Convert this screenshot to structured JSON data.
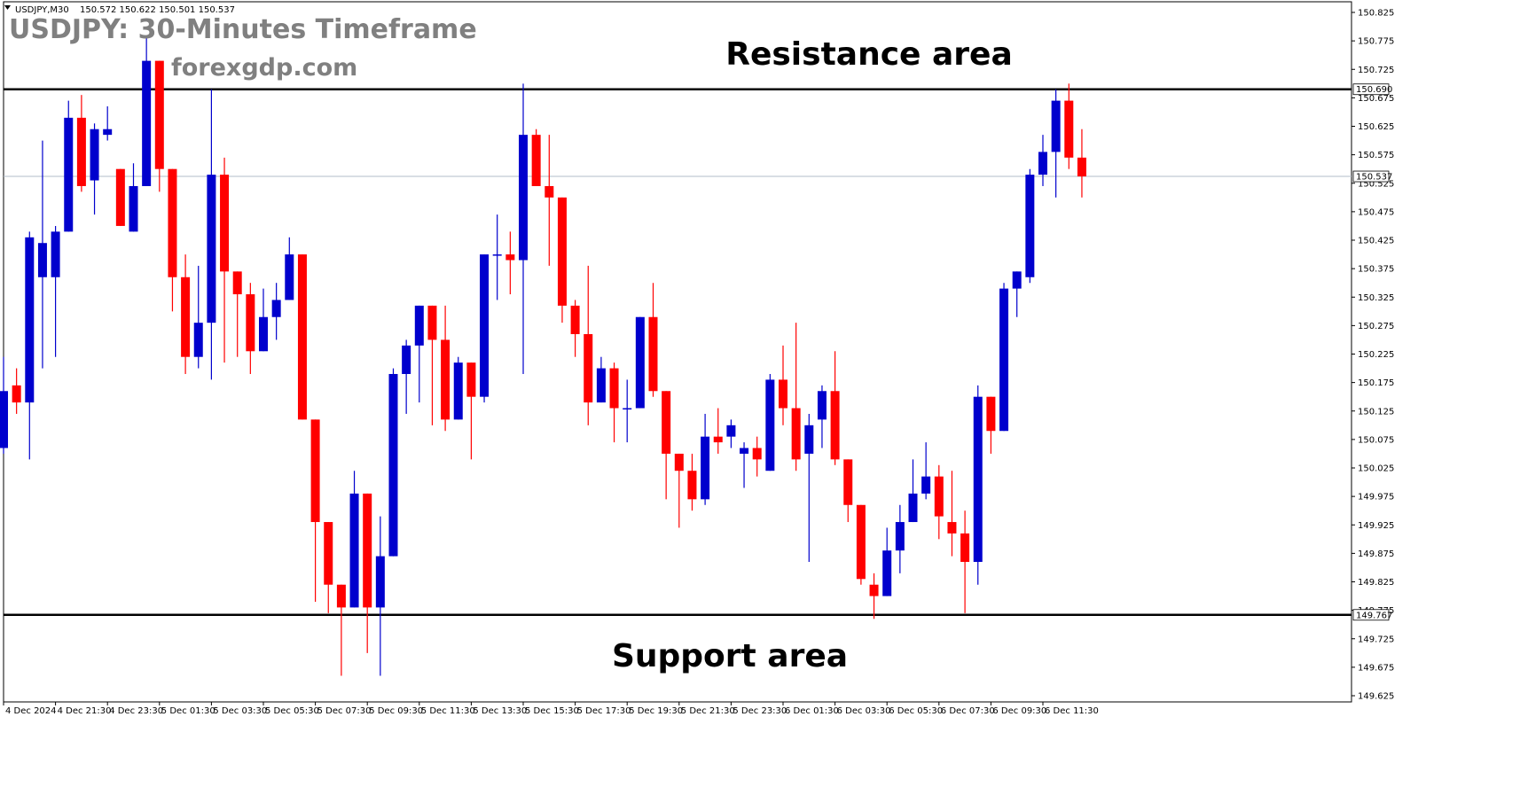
{
  "window": {
    "symbol_info": "USDJPY,M30",
    "ohlc_info": "150.572 150.622 150.501 150.537"
  },
  "overlay": {
    "title": "USDJPY: 30-Minutes Timeframe",
    "website": "forexgdp.com",
    "resistance_label": "Resistance area",
    "support_label": "Support area"
  },
  "colors": {
    "bull": "#0000cd",
    "bear": "#ff0000",
    "bg": "#ffffff",
    "line": "#000000",
    "bid_line": "#b0bcc8"
  },
  "chart_data": {
    "type": "candlestick",
    "timeframe": "M30",
    "y_range": [
      149.6,
      150.84
    ],
    "y_ticks": [
      "150.825",
      "150.775",
      "150.725",
      "150.675",
      "150.625",
      "150.575",
      "150.525",
      "150.475",
      "150.425",
      "150.375",
      "150.325",
      "150.275",
      "150.225",
      "150.175",
      "150.125",
      "150.075",
      "150.025",
      "149.975",
      "149.925",
      "149.875",
      "149.825",
      "149.775",
      "149.725",
      "149.675",
      "149.625"
    ],
    "x_labels": [
      "4 Dec 2024",
      "4 Dec 21:30",
      "4 Dec 23:30",
      "5 Dec 01:30",
      "5 Dec 03:30",
      "5 Dec 05:30",
      "5 Dec 07:30",
      "5 Dec 09:30",
      "5 Dec 11:30",
      "5 Dec 13:30",
      "5 Dec 15:30",
      "5 Dec 17:30",
      "5 Dec 19:30",
      "5 Dec 21:30",
      "5 Dec 23:30",
      "6 Dec 01:30",
      "6 Dec 03:30",
      "6 Dec 05:30",
      "6 Dec 07:30",
      "6 Dec 09:30",
      "6 Dec 11:30"
    ],
    "levels": {
      "resistance": 150.69,
      "support": 149.767,
      "current": 150.537
    },
    "level_labels": {
      "resistance": "150.690",
      "support": "149.767",
      "current": "150.537"
    },
    "candles": [
      {
        "o": 150.06,
        "h": 150.22,
        "l": 150.05,
        "c": 150.16
      },
      {
        "o": 150.17,
        "h": 150.2,
        "l": 150.12,
        "c": 150.14
      },
      {
        "o": 150.14,
        "h": 150.44,
        "l": 150.04,
        "c": 150.43
      },
      {
        "o": 150.36,
        "h": 150.6,
        "l": 150.2,
        "c": 150.42
      },
      {
        "o": 150.36,
        "h": 150.45,
        "l": 150.22,
        "c": 150.44
      },
      {
        "o": 150.44,
        "h": 150.67,
        "l": 150.44,
        "c": 150.64
      },
      {
        "o": 150.64,
        "h": 150.68,
        "l": 150.51,
        "c": 150.52
      },
      {
        "o": 150.53,
        "h": 150.63,
        "l": 150.47,
        "c": 150.62
      },
      {
        "o": 150.61,
        "h": 150.66,
        "l": 150.6,
        "c": 150.62
      },
      {
        "o": 150.55,
        "h": 150.55,
        "l": 150.45,
        "c": 150.45
      },
      {
        "o": 150.44,
        "h": 150.56,
        "l": 150.44,
        "c": 150.52
      },
      {
        "o": 150.52,
        "h": 150.78,
        "l": 150.52,
        "c": 150.74
      },
      {
        "o": 150.74,
        "h": 150.74,
        "l": 150.51,
        "c": 150.55
      },
      {
        "o": 150.55,
        "h": 150.55,
        "l": 150.3,
        "c": 150.36
      },
      {
        "o": 150.36,
        "h": 150.4,
        "l": 150.19,
        "c": 150.22
      },
      {
        "o": 150.22,
        "h": 150.38,
        "l": 150.2,
        "c": 150.28
      },
      {
        "o": 150.28,
        "h": 150.69,
        "l": 150.18,
        "c": 150.54
      },
      {
        "o": 150.54,
        "h": 150.57,
        "l": 150.21,
        "c": 150.37
      },
      {
        "o": 150.37,
        "h": 150.37,
        "l": 150.22,
        "c": 150.33
      },
      {
        "o": 150.33,
        "h": 150.35,
        "l": 150.19,
        "c": 150.23
      },
      {
        "o": 150.23,
        "h": 150.34,
        "l": 150.23,
        "c": 150.29
      },
      {
        "o": 150.29,
        "h": 150.35,
        "l": 150.25,
        "c": 150.32
      },
      {
        "o": 150.32,
        "h": 150.43,
        "l": 150.32,
        "c": 150.4
      },
      {
        "o": 150.4,
        "h": 150.4,
        "l": 150.11,
        "c": 150.11
      },
      {
        "o": 150.11,
        "h": 150.11,
        "l": 149.79,
        "c": 149.93
      },
      {
        "o": 149.93,
        "h": 149.93,
        "l": 149.77,
        "c": 149.82
      },
      {
        "o": 149.82,
        "h": 149.82,
        "l": 149.66,
        "c": 149.78
      },
      {
        "o": 149.78,
        "h": 150.02,
        "l": 149.78,
        "c": 149.98
      },
      {
        "o": 149.98,
        "h": 149.98,
        "l": 149.7,
        "c": 149.78
      },
      {
        "o": 149.78,
        "h": 149.94,
        "l": 149.66,
        "c": 149.87
      },
      {
        "o": 149.87,
        "h": 150.2,
        "l": 149.87,
        "c": 150.19
      },
      {
        "o": 150.19,
        "h": 150.25,
        "l": 150.12,
        "c": 150.24
      },
      {
        "o": 150.24,
        "h": 150.31,
        "l": 150.14,
        "c": 150.31
      },
      {
        "o": 150.31,
        "h": 150.31,
        "l": 150.1,
        "c": 150.25
      },
      {
        "o": 150.25,
        "h": 150.31,
        "l": 150.09,
        "c": 150.11
      },
      {
        "o": 150.11,
        "h": 150.22,
        "l": 150.11,
        "c": 150.21
      },
      {
        "o": 150.21,
        "h": 150.21,
        "l": 150.04,
        "c": 150.15
      },
      {
        "o": 150.15,
        "h": 150.4,
        "l": 150.14,
        "c": 150.4
      },
      {
        "o": 150.4,
        "h": 150.47,
        "l": 150.32,
        "c": 150.4
      },
      {
        "o": 150.4,
        "h": 150.44,
        "l": 150.33,
        "c": 150.39
      },
      {
        "o": 150.39,
        "h": 150.7,
        "l": 150.19,
        "c": 150.61
      },
      {
        "o": 150.61,
        "h": 150.62,
        "l": 150.52,
        "c": 150.52
      },
      {
        "o": 150.52,
        "h": 150.61,
        "l": 150.38,
        "c": 150.5
      },
      {
        "o": 150.5,
        "h": 150.5,
        "l": 150.28,
        "c": 150.31
      },
      {
        "o": 150.31,
        "h": 150.32,
        "l": 150.22,
        "c": 150.26
      },
      {
        "o": 150.26,
        "h": 150.38,
        "l": 150.1,
        "c": 150.14
      },
      {
        "o": 150.14,
        "h": 150.22,
        "l": 150.14,
        "c": 150.2
      },
      {
        "o": 150.2,
        "h": 150.21,
        "l": 150.07,
        "c": 150.13
      },
      {
        "o": 150.13,
        "h": 150.18,
        "l": 150.07,
        "c": 150.13
      },
      {
        "o": 150.13,
        "h": 150.29,
        "l": 150.13,
        "c": 150.29
      },
      {
        "o": 150.29,
        "h": 150.35,
        "l": 150.15,
        "c": 150.16
      },
      {
        "o": 150.16,
        "h": 150.16,
        "l": 149.97,
        "c": 150.05
      },
      {
        "o": 150.05,
        "h": 150.05,
        "l": 149.92,
        "c": 150.02
      },
      {
        "o": 150.02,
        "h": 150.05,
        "l": 149.95,
        "c": 149.97
      },
      {
        "o": 149.97,
        "h": 150.12,
        "l": 149.96,
        "c": 150.08
      },
      {
        "o": 150.08,
        "h": 150.13,
        "l": 150.05,
        "c": 150.07
      },
      {
        "o": 150.08,
        "h": 150.11,
        "l": 150.06,
        "c": 150.1
      },
      {
        "o": 150.05,
        "h": 150.07,
        "l": 149.99,
        "c": 150.06
      },
      {
        "o": 150.06,
        "h": 150.08,
        "l": 150.01,
        "c": 150.04
      },
      {
        "o": 150.02,
        "h": 150.19,
        "l": 150.02,
        "c": 150.18
      },
      {
        "o": 150.18,
        "h": 150.24,
        "l": 150.1,
        "c": 150.13
      },
      {
        "o": 150.13,
        "h": 150.28,
        "l": 150.02,
        "c": 150.04
      },
      {
        "o": 150.05,
        "h": 150.12,
        "l": 149.86,
        "c": 150.1
      },
      {
        "o": 150.11,
        "h": 150.17,
        "l": 150.06,
        "c": 150.16
      },
      {
        "o": 150.16,
        "h": 150.23,
        "l": 150.03,
        "c": 150.04
      },
      {
        "o": 150.04,
        "h": 150.04,
        "l": 149.93,
        "c": 149.96
      },
      {
        "o": 149.96,
        "h": 149.96,
        "l": 149.82,
        "c": 149.83
      },
      {
        "o": 149.82,
        "h": 149.84,
        "l": 149.76,
        "c": 149.8
      },
      {
        "o": 149.8,
        "h": 149.92,
        "l": 149.8,
        "c": 149.88
      },
      {
        "o": 149.88,
        "h": 149.96,
        "l": 149.84,
        "c": 149.93
      },
      {
        "o": 149.93,
        "h": 150.04,
        "l": 149.93,
        "c": 149.98
      },
      {
        "o": 149.98,
        "h": 150.07,
        "l": 149.97,
        "c": 150.01
      },
      {
        "o": 150.01,
        "h": 150.03,
        "l": 149.9,
        "c": 149.94
      },
      {
        "o": 149.93,
        "h": 150.02,
        "l": 149.87,
        "c": 149.91
      },
      {
        "o": 149.91,
        "h": 149.95,
        "l": 149.77,
        "c": 149.86
      },
      {
        "o": 149.86,
        "h": 150.17,
        "l": 149.82,
        "c": 150.15
      },
      {
        "o": 150.15,
        "h": 150.15,
        "l": 150.05,
        "c": 150.09
      },
      {
        "o": 150.09,
        "h": 150.35,
        "l": 150.09,
        "c": 150.34
      },
      {
        "o": 150.34,
        "h": 150.37,
        "l": 150.29,
        "c": 150.37
      },
      {
        "o": 150.36,
        "h": 150.55,
        "l": 150.35,
        "c": 150.54
      },
      {
        "o": 150.54,
        "h": 150.61,
        "l": 150.52,
        "c": 150.58
      },
      {
        "o": 150.58,
        "h": 150.69,
        "l": 150.5,
        "c": 150.67
      },
      {
        "o": 150.67,
        "h": 150.7,
        "l": 150.55,
        "c": 150.57
      },
      {
        "o": 150.57,
        "h": 150.62,
        "l": 150.5,
        "c": 150.537
      }
    ]
  }
}
